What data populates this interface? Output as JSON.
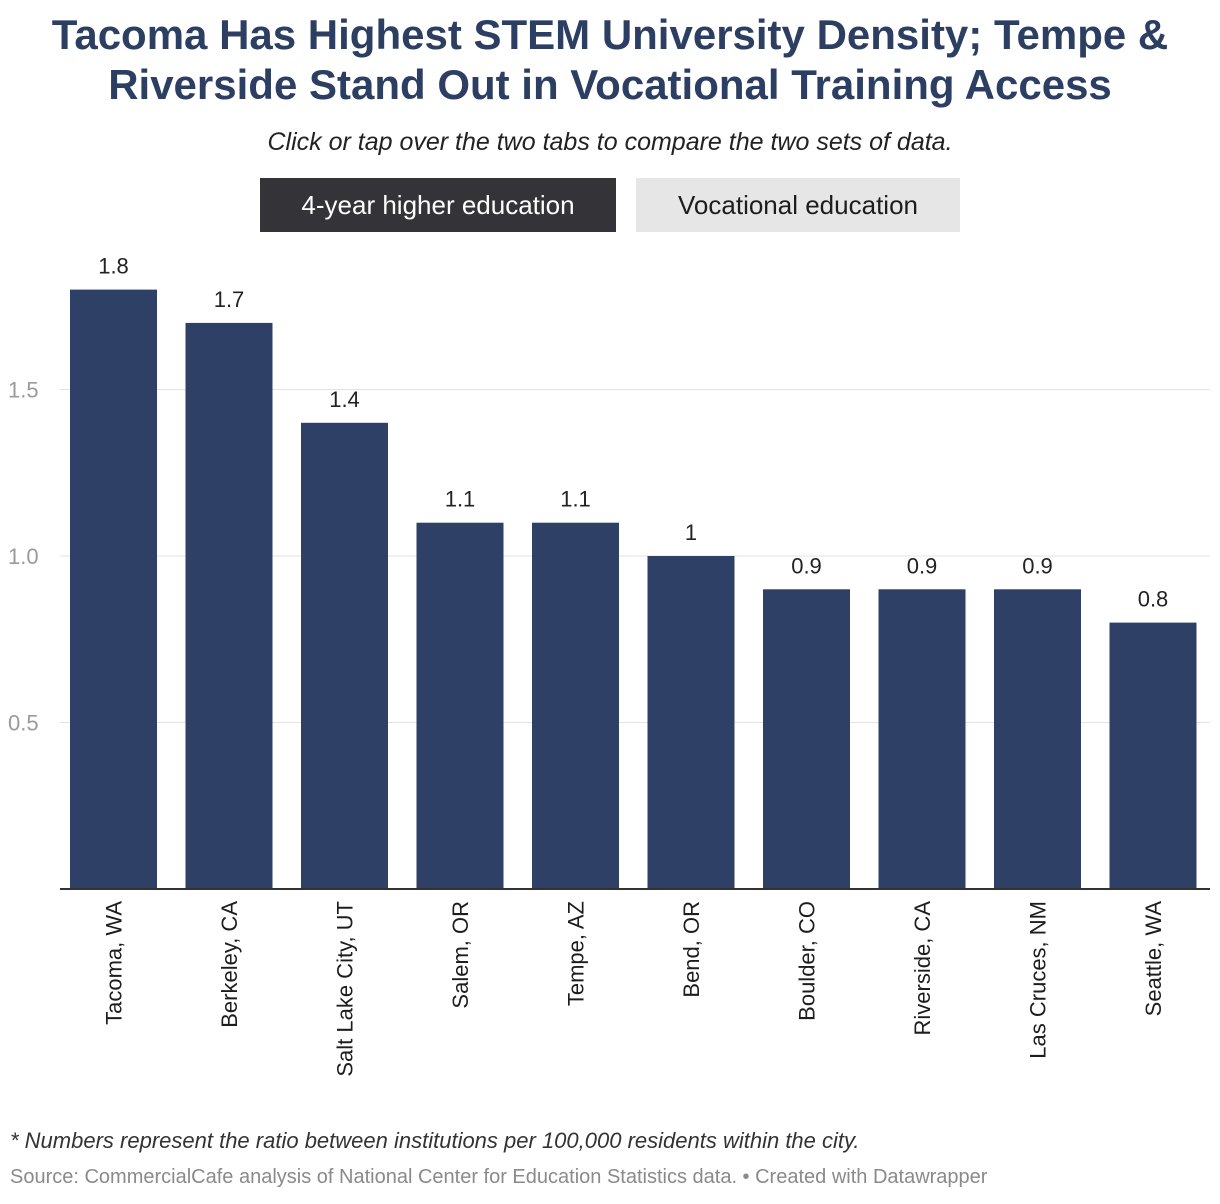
{
  "header": {
    "title_line1": "Tacoma Has Highest STEM University Density; Tempe &",
    "title_line2": "Riverside Stand Out in Vocational Training Access",
    "subtitle": "Click or tap over the two tabs to compare the two sets of data."
  },
  "tabs": [
    {
      "label": "4-year higher education",
      "active": true
    },
    {
      "label": "Vocational education",
      "active": false
    }
  ],
  "colors": {
    "bar": "#2e4066",
    "grid": "#e3e3e3",
    "baseline": "#333333"
  },
  "chart_data": {
    "type": "bar",
    "categories": [
      "Tacoma, WA",
      "Berkeley, CA",
      "Salt Lake City, UT",
      "Salem, OR",
      "Tempe, AZ",
      "Bend, OR",
      "Boulder, CO",
      "Riverside, CA",
      "Las Cruces, NM",
      "Seattle, WA"
    ],
    "values": [
      1.8,
      1.7,
      1.4,
      1.1,
      1.1,
      1,
      0.9,
      0.9,
      0.9,
      0.8
    ],
    "value_labels": [
      "1.8",
      "1.7",
      "1.4",
      "1.1",
      "1.1",
      "1",
      "0.9",
      "0.9",
      "0.9",
      "0.8"
    ],
    "yticks": [
      0.5,
      1.0,
      1.5
    ],
    "ytick_labels": [
      "0.5",
      "1.0",
      "1.5"
    ],
    "ylim": [
      0,
      1.8
    ],
    "grid": true,
    "xlabel": "",
    "ylabel": ""
  },
  "footer": {
    "note": "* Numbers represent the ratio between institutions per 100,000 residents within the city.",
    "source": "Source: CommercialCafe analysis of National Center for Education Statistics data. • Created with Datawrapper"
  }
}
